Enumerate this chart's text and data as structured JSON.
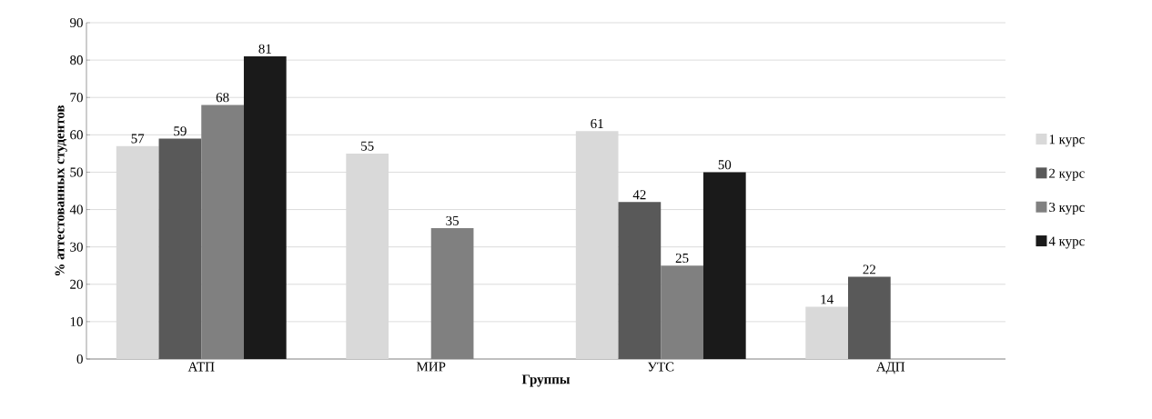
{
  "chart_data": {
    "type": "bar",
    "xlabel": "Группы",
    "ylabel": "% аттестованных студентов",
    "categories": [
      "АТП",
      "МИР",
      "УТС",
      "АДП"
    ],
    "series": [
      {
        "name": "1 курс",
        "color": "#d9d9d9",
        "values": [
          57,
          55,
          61,
          14
        ]
      },
      {
        "name": "2 курс",
        "color": "#595959",
        "values": [
          59,
          null,
          42,
          22
        ]
      },
      {
        "name": "3 курс",
        "color": "#808080",
        "values": [
          68,
          35,
          25,
          null
        ]
      },
      {
        "name": "4 курс",
        "color": "#1a1a1a",
        "values": [
          81,
          null,
          50,
          null
        ]
      }
    ],
    "ylim": [
      0,
      90
    ],
    "yticks": [
      0,
      10,
      20,
      30,
      40,
      50,
      60,
      70,
      80,
      90
    ],
    "grid": "y",
    "legend": "right",
    "data_labels": true
  }
}
